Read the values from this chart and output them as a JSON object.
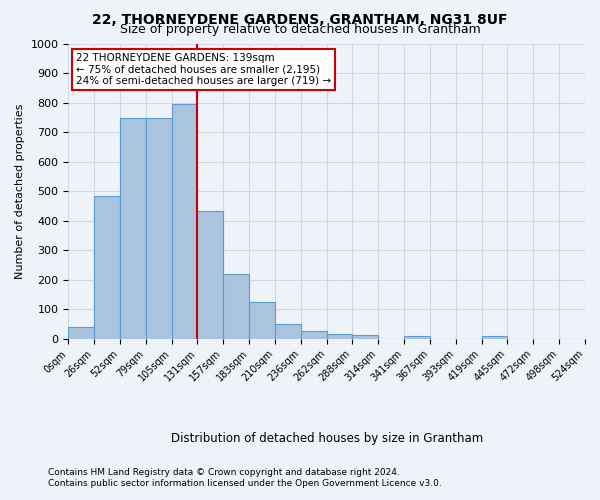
{
  "title": "22, THORNEYDENE GARDENS, GRANTHAM, NG31 8UF",
  "subtitle": "Size of property relative to detached houses in Grantham",
  "xlabel": "Distribution of detached houses by size in Grantham",
  "ylabel": "Number of detached properties",
  "footer_line1": "Contains HM Land Registry data © Crown copyright and database right 2024.",
  "footer_line2": "Contains public sector information licensed under the Open Government Licence v3.0.",
  "bin_labels": [
    "0sqm",
    "26sqm",
    "52sqm",
    "79sqm",
    "105sqm",
    "131sqm",
    "157sqm",
    "183sqm",
    "210sqm",
    "236sqm",
    "262sqm",
    "288sqm",
    "314sqm",
    "341sqm",
    "367sqm",
    "393sqm",
    "419sqm",
    "445sqm",
    "472sqm",
    "498sqm",
    "524sqm"
  ],
  "bar_values": [
    40,
    485,
    750,
    750,
    795,
    435,
    220,
    125,
    50,
    25,
    15,
    12,
    0,
    10,
    0,
    0,
    10,
    0,
    0,
    0
  ],
  "bar_color": "#aac4de",
  "bar_edge_color": "#5b9bd5",
  "ylim": [
    0,
    1000
  ],
  "yticks": [
    0,
    100,
    200,
    300,
    400,
    500,
    600,
    700,
    800,
    900,
    1000
  ],
  "property_size": 139,
  "property_line_x": 5.0,
  "annotation_text_line1": "22 THORNEYDENE GARDENS: 139sqm",
  "annotation_text_line2": "← 75% of detached houses are smaller (2,195)",
  "annotation_text_line3": "24% of semi-detached houses are larger (719) →",
  "annotation_box_color": "#ffffff",
  "annotation_box_edge": "#cc0000",
  "vline_color": "#cc0000",
  "grid_color": "#d0d8e8",
  "background_color": "#eef2f9"
}
